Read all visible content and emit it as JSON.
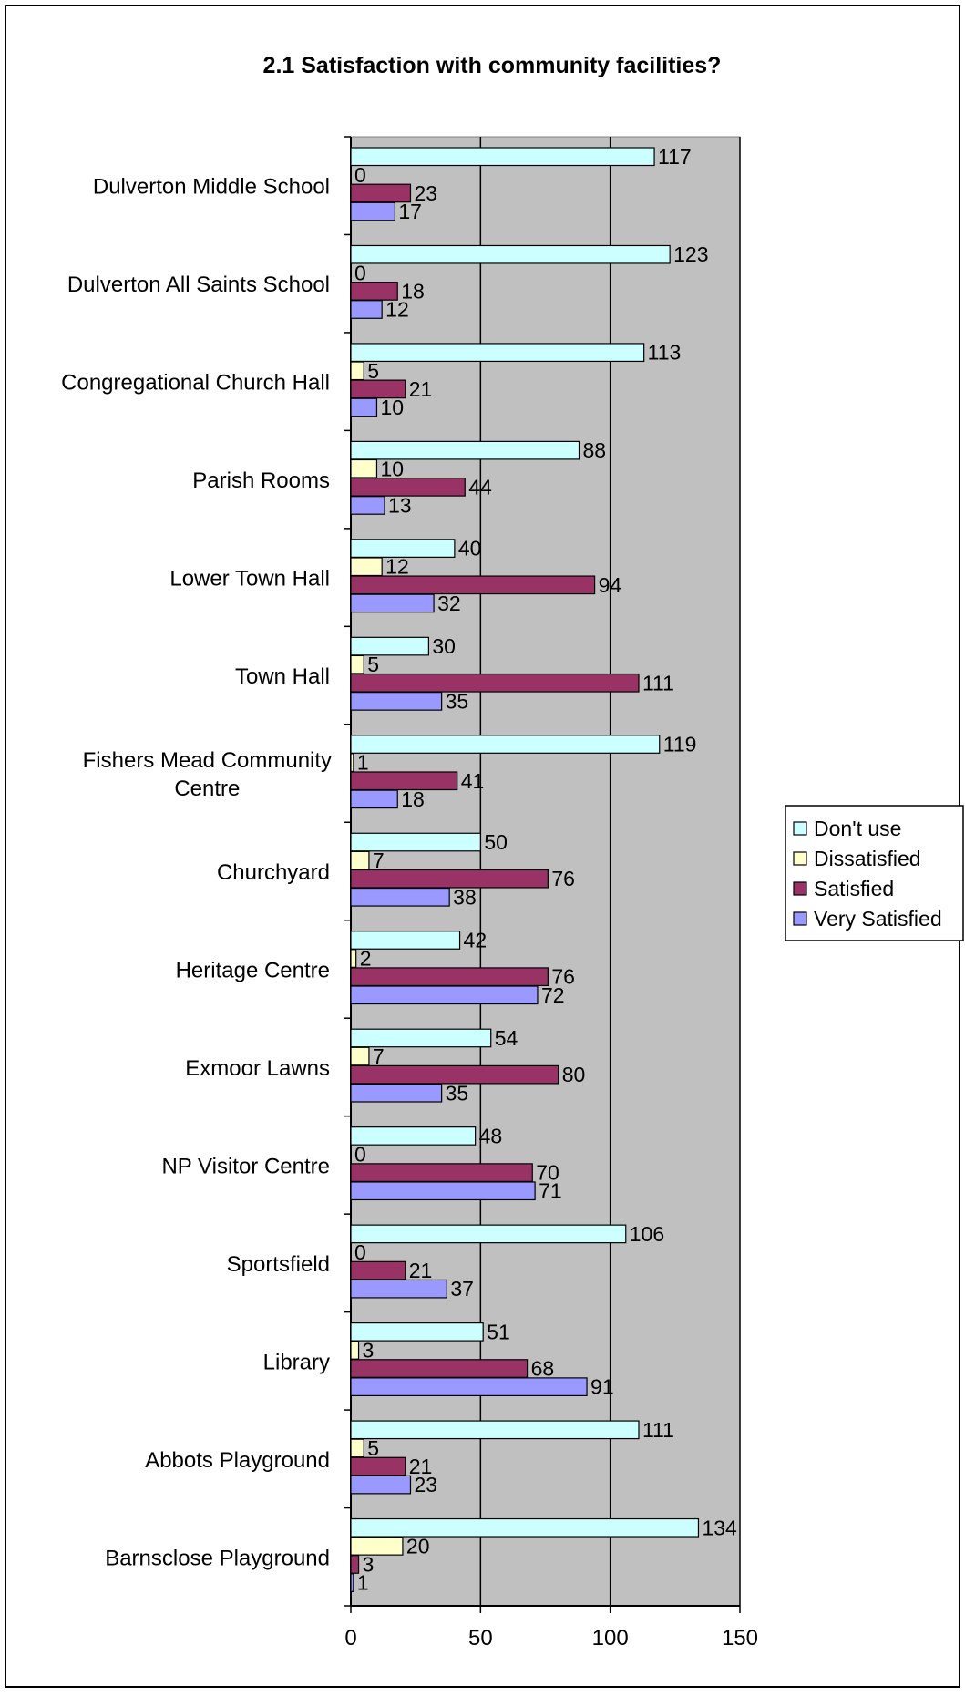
{
  "chart_data": {
    "type": "bar",
    "orientation": "horizontal",
    "title": "2.1 Satisfaction with community facilities?",
    "xlabel": "",
    "ylabel": "",
    "xlim": [
      0,
      150
    ],
    "x_ticks": [
      0,
      50,
      100,
      150
    ],
    "grid": "vertical major gridlines",
    "plot_background": "#c0c0c0",
    "legend_position": "right",
    "categories": [
      "Dulverton Middle School",
      "Dulverton All Saints School",
      "Congregational Church Hall",
      "Parish Rooms",
      "Lower Town Hall",
      "Town Hall",
      "Fishers Mead Community Centre",
      "Churchyard",
      "Heritage Centre",
      "Exmoor Lawns",
      "NP Visitor Centre",
      "Sportsfield",
      "Library",
      "Abbots Playground",
      "Barnsclose Playground"
    ],
    "category_display_lines": {
      "Fishers Mead Community Centre": [
        "Fishers Mead Community",
        "Centre"
      ]
    },
    "series": [
      {
        "name": "Don't use",
        "color": "#ccffff",
        "values": [
          117,
          123,
          113,
          88,
          40,
          30,
          119,
          50,
          42,
          54,
          48,
          106,
          51,
          111,
          134
        ]
      },
      {
        "name": "Dissatisfied",
        "color": "#ffffcc",
        "values": [
          0,
          0,
          5,
          10,
          12,
          5,
          1,
          7,
          2,
          7,
          0,
          0,
          3,
          5,
          20
        ]
      },
      {
        "name": "Satisfied",
        "color": "#993366",
        "values": [
          23,
          18,
          21,
          44,
          94,
          111,
          41,
          76,
          76,
          80,
          70,
          21,
          68,
          21,
          3
        ]
      },
      {
        "name": "Very Satisfied",
        "color": "#9999ff",
        "values": [
          17,
          12,
          10,
          13,
          32,
          35,
          18,
          38,
          72,
          35,
          71,
          37,
          91,
          23,
          1
        ]
      }
    ]
  }
}
